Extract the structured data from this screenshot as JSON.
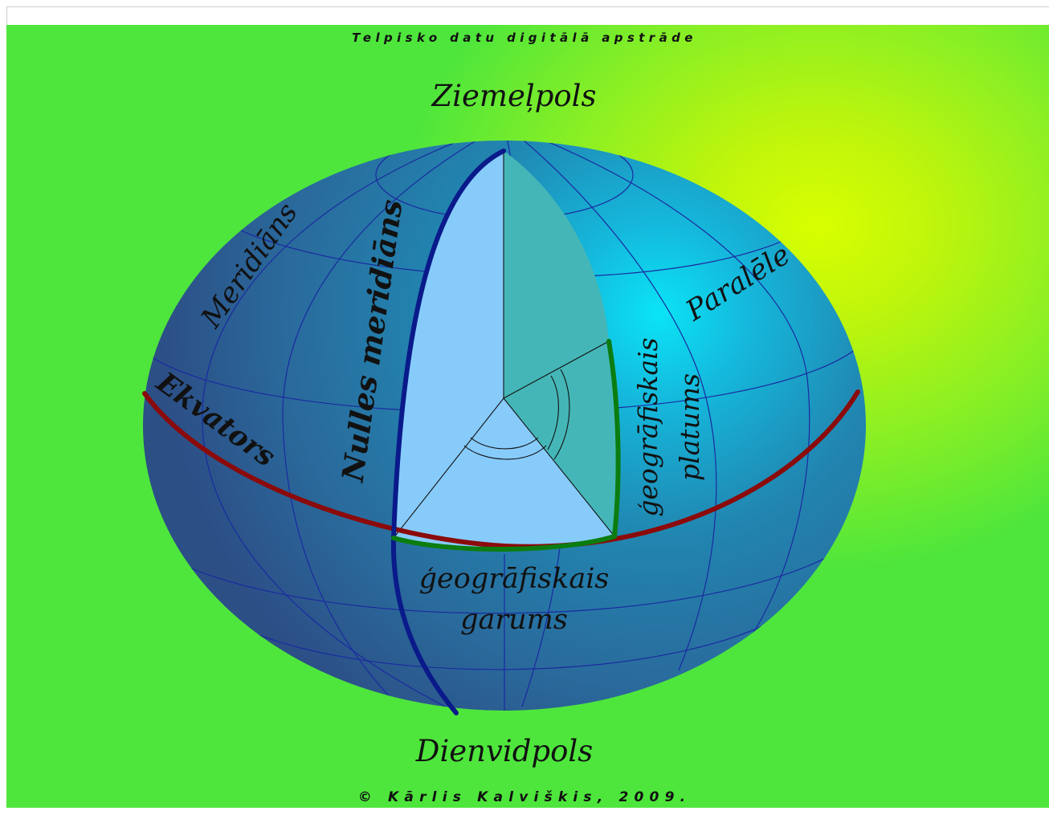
{
  "header": {
    "title": "Telpisko datu digitālā apstrāde"
  },
  "footer": {
    "credit": "© Kārlis Kalviškis, 2009."
  },
  "globe": {
    "labels": {
      "north_pole": "Ziemeļpols",
      "south_pole": "Dienvidpols",
      "meridian": "Meridiāns",
      "prime_meridian": "Nulles meridiāns",
      "equator": "Ekvators",
      "parallel": "Paralēle",
      "latitude_line1": "ģeogrāfiskais",
      "latitude_line2": "platums",
      "longitude_line1": "ģeogrāfiskais",
      "longitude_line2": "garums"
    },
    "colors": {
      "background_green": "#4ee63c",
      "background_highlight": "#d8ff00",
      "sphere_blue": "#2580a8",
      "sphere_highlight": "#10d0ee",
      "grid_lines": "#1a2aa0",
      "prime_meridian": "#0a1a8a",
      "equator": "#8b0a0a",
      "angle_arcs": "#0b7d10",
      "cut_face_light": "#87cbfb",
      "cut_face_teal": "#45b6b7"
    }
  }
}
